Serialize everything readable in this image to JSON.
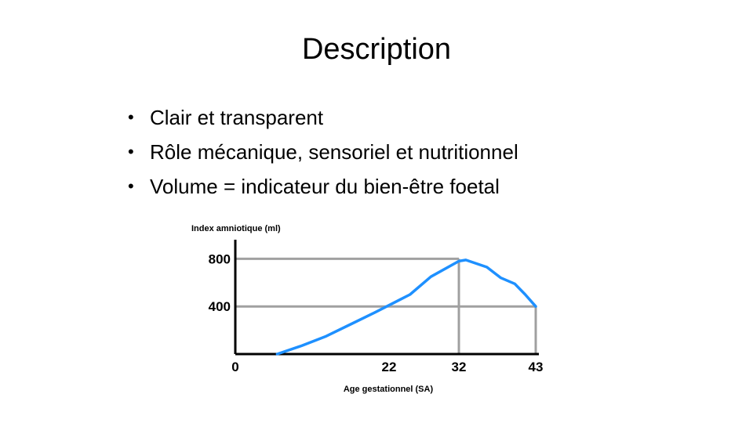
{
  "slide": {
    "title": "Description",
    "bullet_glyph": "•",
    "bullets": [
      "Clair et transparent",
      "Rôle mécanique, sensoriel et nutritionnel",
      "Volume = indicateur du bien-être foetal"
    ]
  },
  "chart_data": {
    "type": "line",
    "ylabel": "Index amniotique (ml)",
    "xlabel": "Age gestationnel (SA)",
    "x_ticks": [
      "0",
      "22",
      "32",
      "43"
    ],
    "y_ticks": [
      "800",
      "400"
    ],
    "xlim": [
      0,
      43
    ],
    "ylim": [
      0,
      1000
    ],
    "grid": false,
    "reference_lines": [
      {
        "y": 800,
        "x_end": 32
      },
      {
        "y": 400,
        "x_end": 43
      }
    ],
    "colors": {
      "curve": "#1e90ff",
      "reference": "#a0a0a0",
      "axis": "#000000"
    },
    "series": [
      {
        "x": [
          6,
          9.5,
          13,
          16.5,
          20,
          25,
          28,
          32,
          33,
          36,
          38,
          40,
          41.5,
          43
        ],
        "y": [
          0,
          70,
          150,
          250,
          350,
          500,
          650,
          780,
          790,
          730,
          640,
          590,
          500,
          400
        ]
      }
    ]
  }
}
